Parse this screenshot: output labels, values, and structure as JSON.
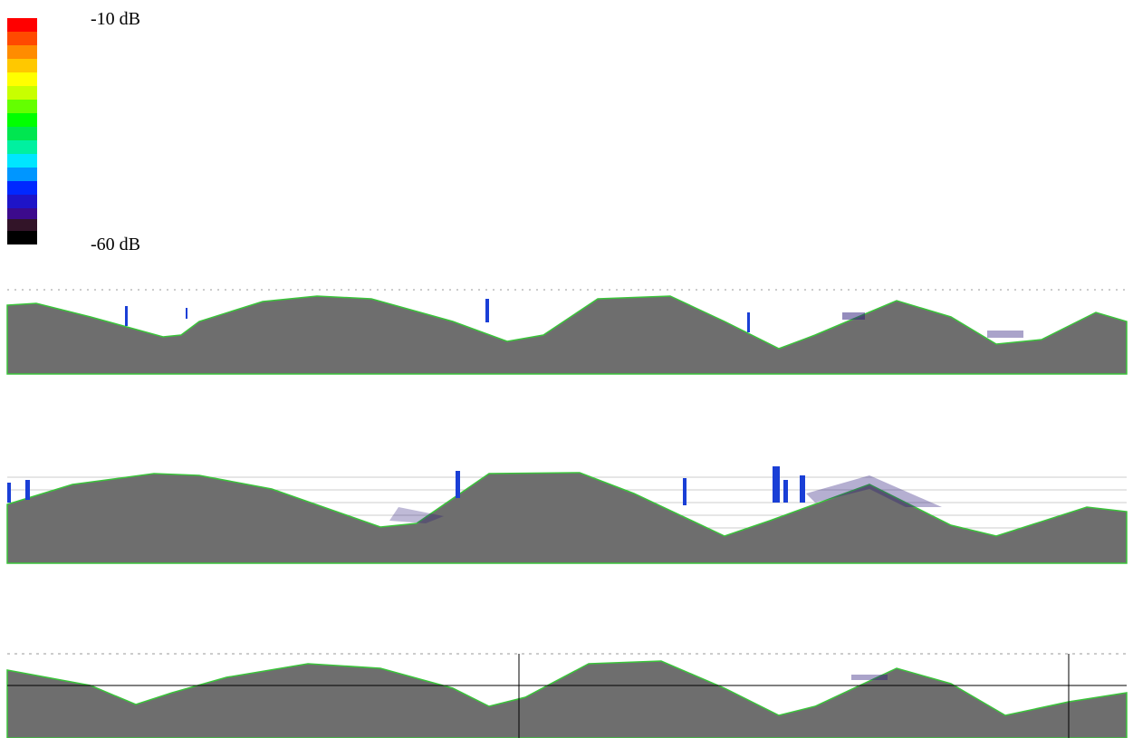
{
  "colorbar": {
    "max_label": "-10 dB",
    "min_label": "-60 dB"
  }
}
